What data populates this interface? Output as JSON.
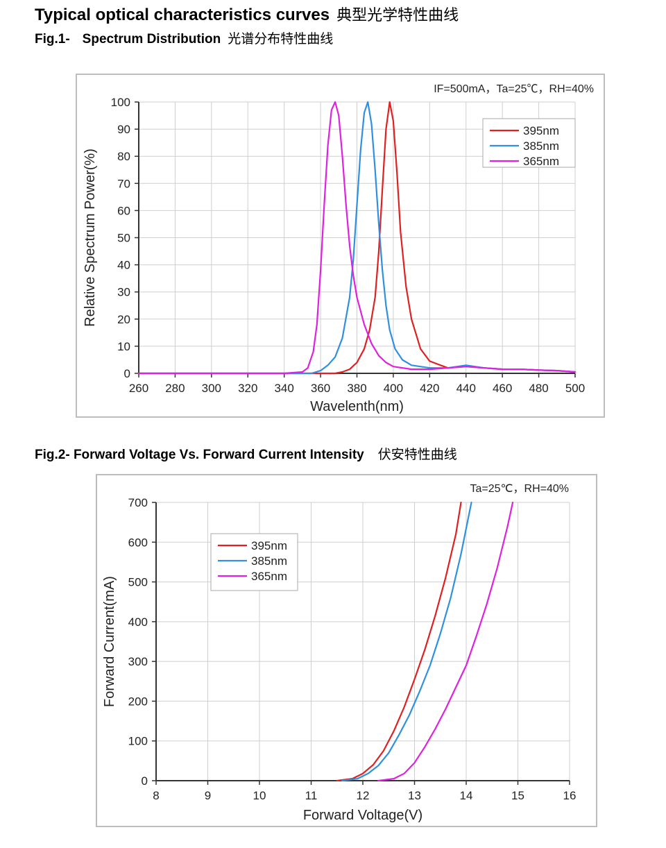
{
  "page": {
    "title": "Typical optical characteristics curves",
    "title_cn": "典型光学特性曲线"
  },
  "fig1": {
    "caption_num": "Fig.1-",
    "caption": "Spectrum Distribution",
    "caption_cn": "光谱分布特性曲线"
  },
  "fig2": {
    "caption": "Fig.2- Forward Voltage Vs. Forward Current Intensity",
    "caption_cn": "伏安特性曲线"
  },
  "chart_data": [
    {
      "type": "line",
      "title": "",
      "condition": "IF=500mA，Ta=25℃，RH=40%",
      "xlabel": "Wavelenth(nm)",
      "ylabel": "Relative Spectrum Power(%)",
      "xlim": [
        260,
        500
      ],
      "ylim": [
        0,
        100
      ],
      "xticks": [
        260,
        280,
        300,
        320,
        340,
        360,
        380,
        400,
        420,
        440,
        460,
        480,
        500
      ],
      "yticks": [
        0,
        10,
        20,
        30,
        40,
        50,
        60,
        70,
        80,
        90,
        100
      ],
      "grid": true,
      "legend_position": "top-right",
      "series": [
        {
          "name": "395nm",
          "color": "#e02020",
          "x": [
            260,
            360,
            368,
            372,
            376,
            380,
            384,
            387,
            390,
            392,
            394,
            396,
            398,
            400,
            402,
            404,
            407,
            410,
            415,
            420,
            430,
            440,
            450,
            460,
            470,
            480,
            490,
            500
          ],
          "y": [
            0,
            0,
            0,
            0.5,
            1.5,
            4,
            9,
            16,
            28,
            45,
            68,
            90,
            100,
            93,
            74,
            52,
            32,
            20,
            9,
            4.5,
            2,
            2.5,
            2,
            1.5,
            1.5,
            1.2,
            1,
            0.5
          ]
        },
        {
          "name": "385nm",
          "color": "#2f8fe0",
          "x": [
            260,
            355,
            360,
            364,
            368,
            372,
            376,
            378,
            380,
            382,
            384,
            386,
            388,
            390,
            392,
            394,
            396,
            398,
            401,
            405,
            410,
            420,
            430,
            440,
            450,
            460,
            470,
            480,
            490,
            500
          ],
          "y": [
            0,
            0,
            1,
            3,
            6,
            13,
            28,
            42,
            62,
            82,
            96,
            100,
            92,
            75,
            55,
            38,
            25,
            16,
            9,
            5,
            3,
            2,
            2,
            3,
            2,
            1.5,
            1.5,
            1.2,
            1,
            0.5
          ]
        },
        {
          "name": "365nm",
          "color": "#e020e0",
          "x": [
            260,
            340,
            350,
            353,
            356,
            358,
            360,
            362,
            364,
            366,
            368,
            370,
            372,
            374,
            376,
            378,
            380,
            384,
            388,
            392,
            396,
            400,
            410,
            420,
            430,
            440,
            450,
            460,
            470,
            480,
            490,
            500
          ],
          "y": [
            0,
            0,
            0.5,
            2,
            8,
            18,
            38,
            62,
            84,
            97,
            100,
            95,
            80,
            62,
            47,
            36,
            28,
            18,
            11,
            6.5,
            4,
            2.5,
            1.5,
            1.5,
            2,
            2.5,
            2,
            1.5,
            1.5,
            1.2,
            1,
            0.5
          ]
        }
      ]
    },
    {
      "type": "line",
      "title": "",
      "condition": "Ta=25℃，RH=40%",
      "xlabel": "Forward Voltage(V)",
      "ylabel": "Forward Current(mA)",
      "xlim": [
        8,
        16
      ],
      "ylim": [
        0,
        700
      ],
      "xticks": [
        8,
        9,
        10,
        11,
        12,
        13,
        14,
        15,
        16
      ],
      "yticks": [
        0,
        100,
        200,
        300,
        400,
        500,
        600,
        700
      ],
      "grid": true,
      "legend_position": "top-left",
      "series": [
        {
          "name": "395nm",
          "color": "#e02020",
          "x": [
            11.5,
            11.8,
            12.0,
            12.2,
            12.4,
            12.6,
            12.8,
            13.0,
            13.2,
            13.4,
            13.6,
            13.8,
            13.9
          ],
          "y": [
            0,
            5,
            18,
            40,
            75,
            125,
            185,
            255,
            330,
            415,
            510,
            620,
            700
          ]
        },
        {
          "name": "385nm",
          "color": "#2f8fe0",
          "x": [
            11.6,
            11.9,
            12.1,
            12.3,
            12.5,
            12.7,
            12.9,
            13.1,
            13.3,
            13.5,
            13.7,
            13.9,
            14.1
          ],
          "y": [
            0,
            5,
            18,
            38,
            70,
            115,
            165,
            225,
            290,
            370,
            460,
            570,
            700
          ]
        },
        {
          "name": "365nm",
          "color": "#e020e0",
          "x": [
            12.3,
            12.6,
            12.8,
            13.0,
            13.2,
            13.4,
            13.6,
            13.8,
            14.0,
            14.2,
            14.4,
            14.6,
            14.8,
            14.9
          ],
          "y": [
            0,
            5,
            18,
            45,
            85,
            130,
            180,
            235,
            290,
            365,
            445,
            535,
            640,
            700
          ]
        }
      ]
    }
  ]
}
